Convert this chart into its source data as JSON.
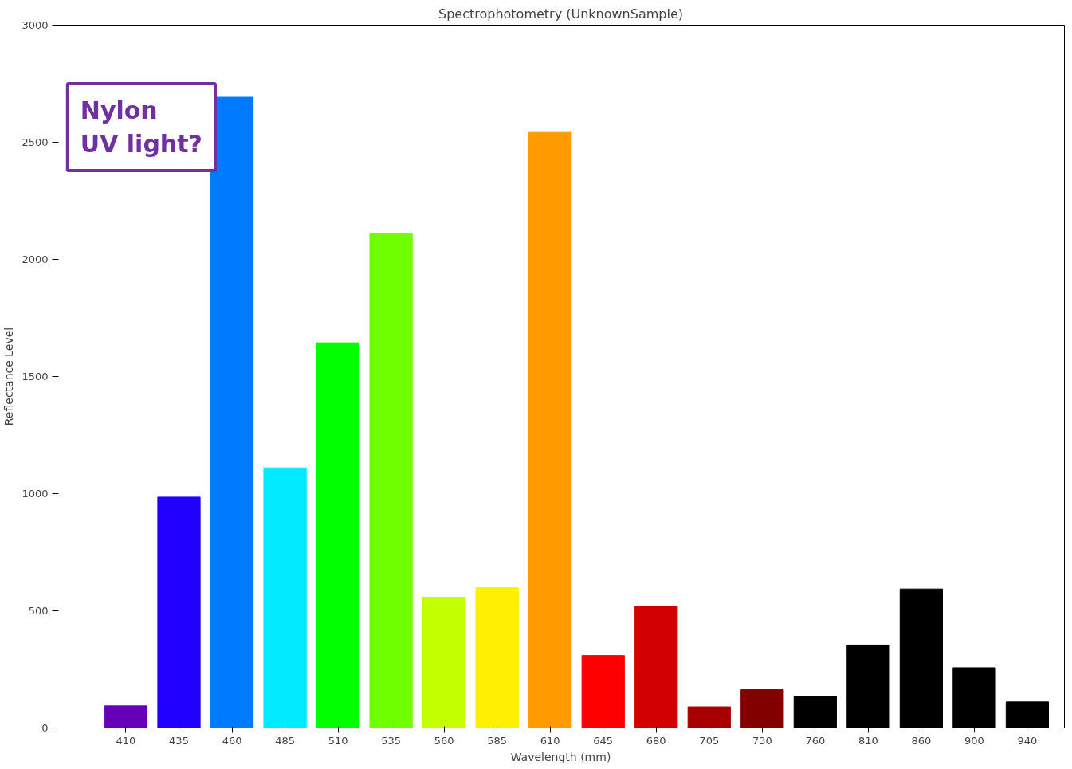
{
  "chart_data": {
    "type": "bar",
    "title": "Spectrophotometry (UnknownSample)",
    "xlabel": "Wavelength (mm)",
    "ylabel": "Reflectance Level",
    "categories": [
      "410",
      "435",
      "460",
      "485",
      "510",
      "535",
      "560",
      "585",
      "610",
      "645",
      "680",
      "705",
      "730",
      "760",
      "810",
      "860",
      "900",
      "940"
    ],
    "values": [
      94,
      985,
      2692,
      1110,
      1644,
      2109,
      558,
      600,
      2542,
      309,
      520,
      90,
      163,
      135,
      354,
      593,
      257,
      111
    ],
    "colors": [
      "#6600b8",
      "#2000ff",
      "#007bff",
      "#00eaff",
      "#00ff00",
      "#70ff00",
      "#c3ff00",
      "#ffef00",
      "#ff9b00",
      "#ff0000",
      "#d20000",
      "#a80000",
      "#820000",
      "#000000",
      "#000000",
      "#000000",
      "#000000",
      "#000000"
    ],
    "ylim": [
      0,
      3000
    ],
    "yticks": [
      0,
      500,
      1000,
      1500,
      2000,
      2500,
      3000
    ],
    "grid": false,
    "annotations": [
      "Nylon\nUV light?"
    ]
  }
}
